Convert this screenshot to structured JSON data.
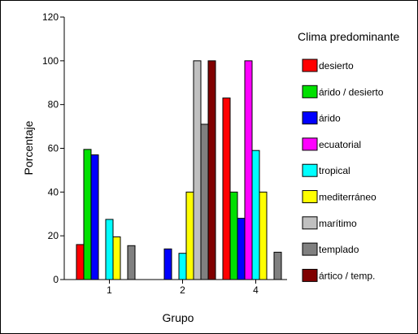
{
  "chart_data": {
    "type": "bar",
    "xlabel": "Grupo",
    "ylabel": "Porcentaje",
    "ylim": [
      0,
      120
    ],
    "yticks": [
      0,
      20,
      40,
      60,
      80,
      100,
      120
    ],
    "categories": [
      "1",
      "2",
      "4"
    ],
    "legend_title": "Clima predominante",
    "legend_position": "right",
    "grid": false,
    "series": [
      {
        "name": "desierto",
        "color": "#ff0000",
        "values": [
          16,
          null,
          83
        ]
      },
      {
        "name": "árido / desierto",
        "color": "#00e000",
        "values": [
          59.5,
          null,
          40
        ]
      },
      {
        "name": "árido",
        "color": "#0000ff",
        "values": [
          57,
          14,
          28
        ]
      },
      {
        "name": "ecuatorial",
        "color": "#ff00ff",
        "values": [
          null,
          null,
          100
        ]
      },
      {
        "name": "tropical",
        "color": "#00ffff",
        "values": [
          27.5,
          12,
          59
        ]
      },
      {
        "name": "mediterráneo",
        "color": "#ffff00",
        "values": [
          19.5,
          40,
          40
        ]
      },
      {
        "name": "marítimo",
        "color": "#c0c0c0",
        "values": [
          null,
          100,
          null
        ]
      },
      {
        "name": "templado",
        "color": "#808080",
        "values": [
          15.5,
          71,
          12.5
        ]
      },
      {
        "name": "ártico / temp.",
        "color": "#800000",
        "values": [
          null,
          100,
          null
        ]
      }
    ]
  }
}
